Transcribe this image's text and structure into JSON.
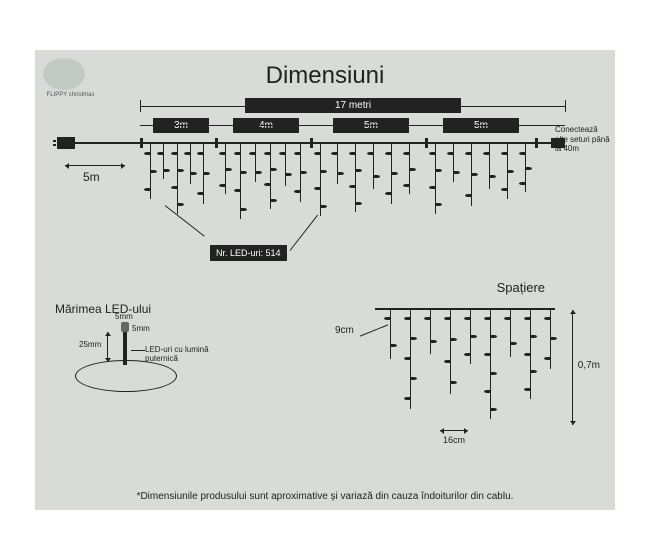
{
  "title": "Dimensiuni",
  "logo_text": "FLIPPY christmas",
  "main": {
    "total_length": "17 metri",
    "lead_cable": "5m",
    "segments": [
      "3m",
      "4m",
      "5m",
      "5m"
    ],
    "connect_text": "Conectează alte seturi până la 40m",
    "led_count_label": "Nr. LED-uri: 514"
  },
  "led_size": {
    "title": "Mărimea LED-ului",
    "height": "25mm",
    "top": "5mm",
    "width": "5mm",
    "desc": "LED-uri cu lumină puternică"
  },
  "spacing": {
    "title": "Spațiere",
    "horizontal": "9cm",
    "gap": "16cm",
    "vertical": "0,7m"
  },
  "footnote": "*Dimensiunile produsului sunt aproximative și variază din cauza îndoiturilor din cablu.",
  "colors": {
    "bg": "#d8dbd8",
    "dark": "#222222"
  }
}
